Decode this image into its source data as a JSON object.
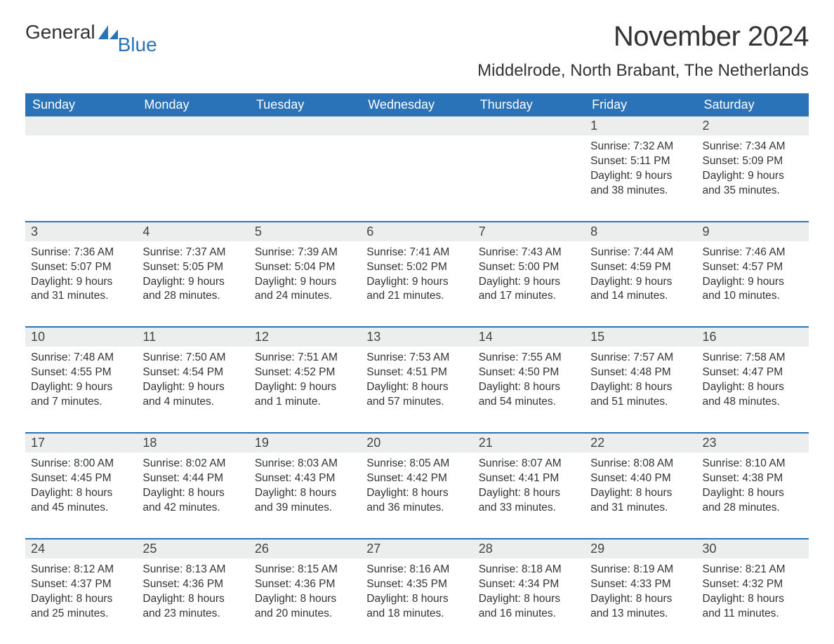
{
  "brand": {
    "word1": "General",
    "word2": "Blue"
  },
  "title": "November 2024",
  "location": "Middelrode, North Brabant, The Netherlands",
  "colors": {
    "primary": "#2a73b8",
    "header_text": "#ffffff",
    "daynum_bg": "#eceded",
    "text": "#333333",
    "background": "#ffffff"
  },
  "fonts": {
    "base_family": "Arial",
    "title_size_pt": 30,
    "location_size_pt": 18,
    "dow_size_pt": 14,
    "body_size_pt": 12
  },
  "days_of_week": [
    "Sunday",
    "Monday",
    "Tuesday",
    "Wednesday",
    "Thursday",
    "Friday",
    "Saturday"
  ],
  "weeks": [
    [
      {
        "blank": true
      },
      {
        "blank": true
      },
      {
        "blank": true
      },
      {
        "blank": true
      },
      {
        "blank": true
      },
      {
        "n": "1",
        "sunrise": "Sunrise: 7:32 AM",
        "sunset": "Sunset: 5:11 PM",
        "day1": "Daylight: 9 hours",
        "day2": "and 38 minutes."
      },
      {
        "n": "2",
        "sunrise": "Sunrise: 7:34 AM",
        "sunset": "Sunset: 5:09 PM",
        "day1": "Daylight: 9 hours",
        "day2": "and 35 minutes."
      }
    ],
    [
      {
        "n": "3",
        "sunrise": "Sunrise: 7:36 AM",
        "sunset": "Sunset: 5:07 PM",
        "day1": "Daylight: 9 hours",
        "day2": "and 31 minutes."
      },
      {
        "n": "4",
        "sunrise": "Sunrise: 7:37 AM",
        "sunset": "Sunset: 5:05 PM",
        "day1": "Daylight: 9 hours",
        "day2": "and 28 minutes."
      },
      {
        "n": "5",
        "sunrise": "Sunrise: 7:39 AM",
        "sunset": "Sunset: 5:04 PM",
        "day1": "Daylight: 9 hours",
        "day2": "and 24 minutes."
      },
      {
        "n": "6",
        "sunrise": "Sunrise: 7:41 AM",
        "sunset": "Sunset: 5:02 PM",
        "day1": "Daylight: 9 hours",
        "day2": "and 21 minutes."
      },
      {
        "n": "7",
        "sunrise": "Sunrise: 7:43 AM",
        "sunset": "Sunset: 5:00 PM",
        "day1": "Daylight: 9 hours",
        "day2": "and 17 minutes."
      },
      {
        "n": "8",
        "sunrise": "Sunrise: 7:44 AM",
        "sunset": "Sunset: 4:59 PM",
        "day1": "Daylight: 9 hours",
        "day2": "and 14 minutes."
      },
      {
        "n": "9",
        "sunrise": "Sunrise: 7:46 AM",
        "sunset": "Sunset: 4:57 PM",
        "day1": "Daylight: 9 hours",
        "day2": "and 10 minutes."
      }
    ],
    [
      {
        "n": "10",
        "sunrise": "Sunrise: 7:48 AM",
        "sunset": "Sunset: 4:55 PM",
        "day1": "Daylight: 9 hours",
        "day2": "and 7 minutes."
      },
      {
        "n": "11",
        "sunrise": "Sunrise: 7:50 AM",
        "sunset": "Sunset: 4:54 PM",
        "day1": "Daylight: 9 hours",
        "day2": "and 4 minutes."
      },
      {
        "n": "12",
        "sunrise": "Sunrise: 7:51 AM",
        "sunset": "Sunset: 4:52 PM",
        "day1": "Daylight: 9 hours",
        "day2": "and 1 minute."
      },
      {
        "n": "13",
        "sunrise": "Sunrise: 7:53 AM",
        "sunset": "Sunset: 4:51 PM",
        "day1": "Daylight: 8 hours",
        "day2": "and 57 minutes."
      },
      {
        "n": "14",
        "sunrise": "Sunrise: 7:55 AM",
        "sunset": "Sunset: 4:50 PM",
        "day1": "Daylight: 8 hours",
        "day2": "and 54 minutes."
      },
      {
        "n": "15",
        "sunrise": "Sunrise: 7:57 AM",
        "sunset": "Sunset: 4:48 PM",
        "day1": "Daylight: 8 hours",
        "day2": "and 51 minutes."
      },
      {
        "n": "16",
        "sunrise": "Sunrise: 7:58 AM",
        "sunset": "Sunset: 4:47 PM",
        "day1": "Daylight: 8 hours",
        "day2": "and 48 minutes."
      }
    ],
    [
      {
        "n": "17",
        "sunrise": "Sunrise: 8:00 AM",
        "sunset": "Sunset: 4:45 PM",
        "day1": "Daylight: 8 hours",
        "day2": "and 45 minutes."
      },
      {
        "n": "18",
        "sunrise": "Sunrise: 8:02 AM",
        "sunset": "Sunset: 4:44 PM",
        "day1": "Daylight: 8 hours",
        "day2": "and 42 minutes."
      },
      {
        "n": "19",
        "sunrise": "Sunrise: 8:03 AM",
        "sunset": "Sunset: 4:43 PM",
        "day1": "Daylight: 8 hours",
        "day2": "and 39 minutes."
      },
      {
        "n": "20",
        "sunrise": "Sunrise: 8:05 AM",
        "sunset": "Sunset: 4:42 PM",
        "day1": "Daylight: 8 hours",
        "day2": "and 36 minutes."
      },
      {
        "n": "21",
        "sunrise": "Sunrise: 8:07 AM",
        "sunset": "Sunset: 4:41 PM",
        "day1": "Daylight: 8 hours",
        "day2": "and 33 minutes."
      },
      {
        "n": "22",
        "sunrise": "Sunrise: 8:08 AM",
        "sunset": "Sunset: 4:40 PM",
        "day1": "Daylight: 8 hours",
        "day2": "and 31 minutes."
      },
      {
        "n": "23",
        "sunrise": "Sunrise: 8:10 AM",
        "sunset": "Sunset: 4:38 PM",
        "day1": "Daylight: 8 hours",
        "day2": "and 28 minutes."
      }
    ],
    [
      {
        "n": "24",
        "sunrise": "Sunrise: 8:12 AM",
        "sunset": "Sunset: 4:37 PM",
        "day1": "Daylight: 8 hours",
        "day2": "and 25 minutes."
      },
      {
        "n": "25",
        "sunrise": "Sunrise: 8:13 AM",
        "sunset": "Sunset: 4:36 PM",
        "day1": "Daylight: 8 hours",
        "day2": "and 23 minutes."
      },
      {
        "n": "26",
        "sunrise": "Sunrise: 8:15 AM",
        "sunset": "Sunset: 4:36 PM",
        "day1": "Daylight: 8 hours",
        "day2": "and 20 minutes."
      },
      {
        "n": "27",
        "sunrise": "Sunrise: 8:16 AM",
        "sunset": "Sunset: 4:35 PM",
        "day1": "Daylight: 8 hours",
        "day2": "and 18 minutes."
      },
      {
        "n": "28",
        "sunrise": "Sunrise: 8:18 AM",
        "sunset": "Sunset: 4:34 PM",
        "day1": "Daylight: 8 hours",
        "day2": "and 16 minutes."
      },
      {
        "n": "29",
        "sunrise": "Sunrise: 8:19 AM",
        "sunset": "Sunset: 4:33 PM",
        "day1": "Daylight: 8 hours",
        "day2": "and 13 minutes."
      },
      {
        "n": "30",
        "sunrise": "Sunrise: 8:21 AM",
        "sunset": "Sunset: 4:32 PM",
        "day1": "Daylight: 8 hours",
        "day2": "and 11 minutes."
      }
    ]
  ]
}
